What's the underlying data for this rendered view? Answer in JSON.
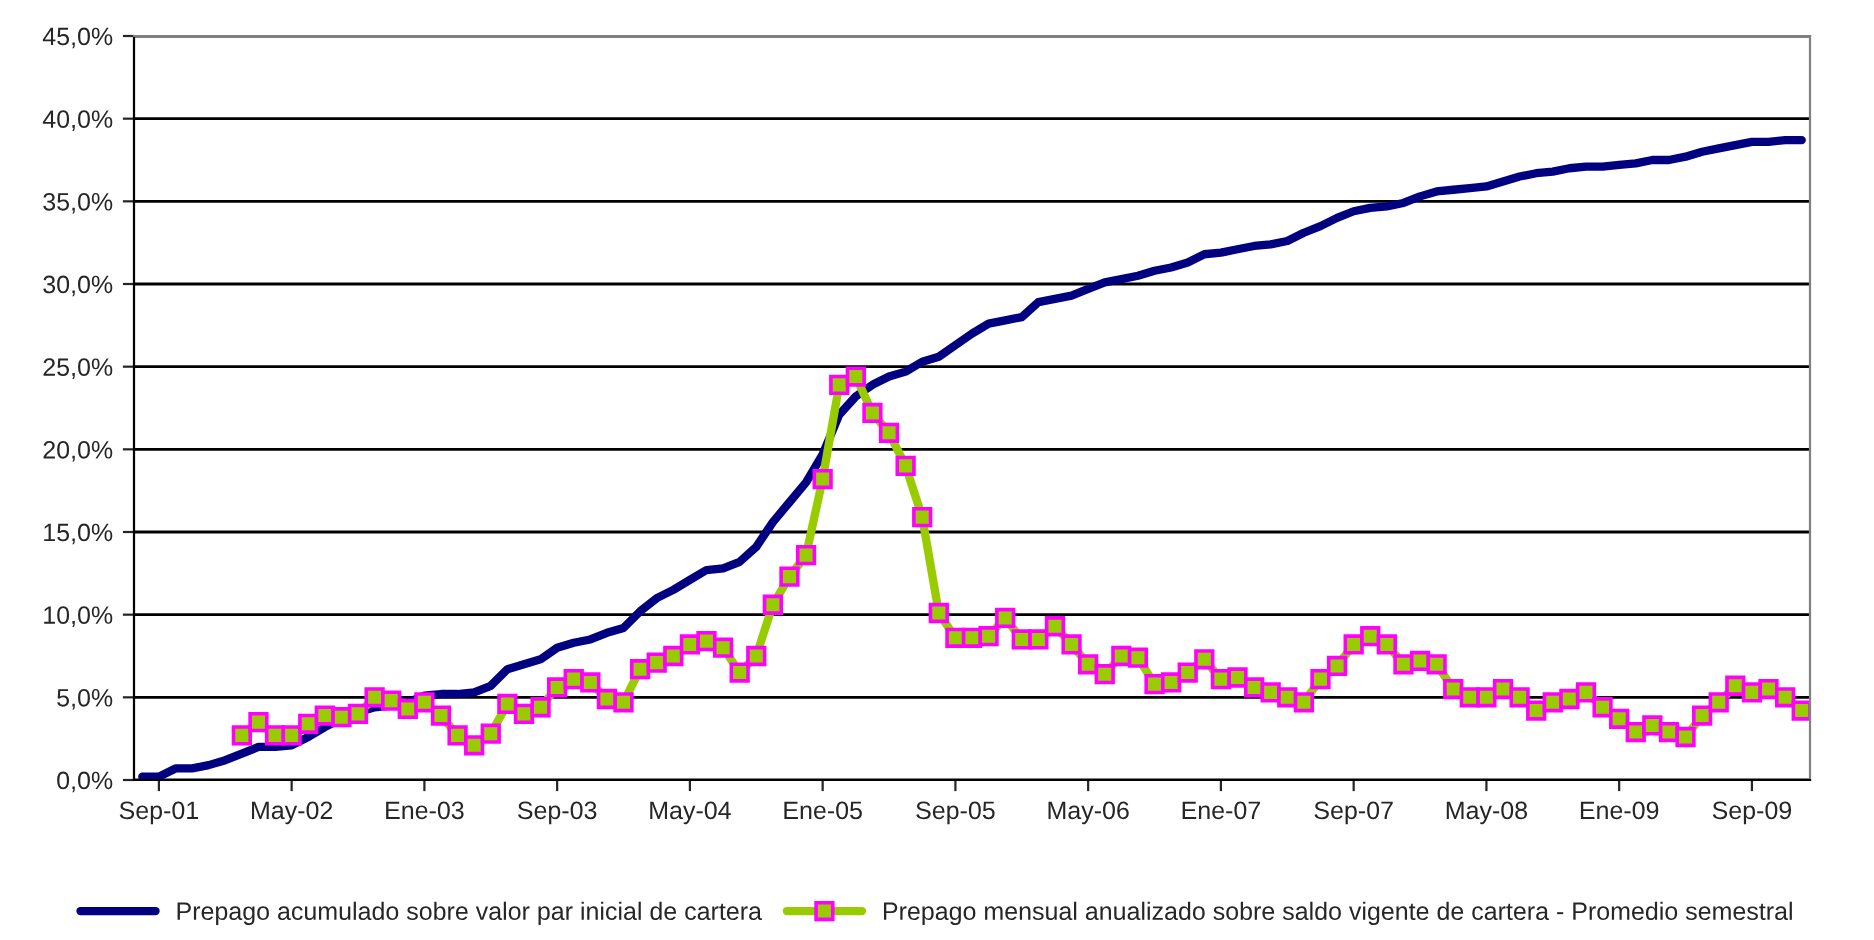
{
  "chart_data": {
    "type": "line",
    "categories": [
      null,
      "Sep-01",
      null,
      null,
      null,
      null,
      null,
      null,
      null,
      "May-02",
      null,
      null,
      null,
      null,
      null,
      null,
      null,
      "Ene-03",
      null,
      null,
      null,
      null,
      null,
      null,
      null,
      "Sep-03",
      null,
      null,
      null,
      null,
      null,
      null,
      null,
      "May-04",
      null,
      null,
      null,
      null,
      null,
      null,
      null,
      "Ene-05",
      null,
      null,
      null,
      null,
      null,
      null,
      null,
      "Sep-05",
      null,
      null,
      null,
      null,
      null,
      null,
      null,
      "May-06",
      null,
      null,
      null,
      null,
      null,
      null,
      null,
      "Ene-07",
      null,
      null,
      null,
      null,
      null,
      null,
      null,
      "Sep-07",
      null,
      null,
      null,
      null,
      null,
      null,
      null,
      "May-08",
      null,
      null,
      null,
      null,
      null,
      null,
      null,
      "Ene-09",
      null,
      null,
      null,
      null,
      null,
      null,
      null,
      "Sep-09",
      null,
      null,
      null
    ],
    "series": [
      {
        "name": "Prepago acumulado sobre valor par inicial de cartera",
        "color": "#000080",
        "marker": "none",
        "values": [
          0.2,
          0.2,
          0.7,
          0.7,
          0.9,
          1.2,
          1.6,
          2.0,
          2.0,
          2.1,
          2.6,
          3.2,
          3.7,
          4.1,
          4.4,
          4.5,
          4.7,
          5.1,
          5.2,
          5.2,
          5.3,
          5.7,
          6.7,
          7.0,
          7.3,
          8.0,
          8.3,
          8.5,
          8.9,
          9.2,
          10.2,
          11.0,
          11.5,
          12.1,
          12.7,
          12.8,
          13.2,
          14.1,
          15.6,
          16.8,
          18.0,
          19.7,
          22.1,
          23.2,
          23.9,
          24.4,
          24.7,
          25.3,
          25.6,
          26.3,
          27.0,
          27.6,
          27.8,
          28.0,
          28.9,
          29.1,
          29.3,
          29.7,
          30.1,
          30.3,
          30.5,
          30.8,
          31.0,
          31.3,
          31.8,
          31.9,
          32.1,
          32.3,
          32.4,
          32.6,
          33.1,
          33.5,
          34.0,
          34.4,
          34.6,
          34.7,
          34.9,
          35.3,
          35.6,
          35.7,
          35.8,
          35.9,
          36.2,
          36.5,
          36.7,
          36.8,
          37.0,
          37.1,
          37.1,
          37.2,
          37.3,
          37.5,
          37.5,
          37.7,
          38.0,
          38.2,
          38.4,
          38.6,
          38.6,
          38.7,
          38.7
        ]
      },
      {
        "name": "Prepago mensual anualizado sobre saldo vigente de cartera - Promedio semestral",
        "color": "#99cc00",
        "marker": "square",
        "values": [
          null,
          null,
          null,
          null,
          null,
          null,
          2.7,
          3.5,
          2.7,
          2.7,
          3.4,
          3.9,
          3.8,
          4.0,
          5.0,
          4.8,
          4.3,
          4.7,
          3.9,
          2.7,
          2.1,
          2.8,
          4.6,
          4.0,
          4.4,
          5.6,
          6.1,
          5.9,
          4.9,
          4.7,
          6.7,
          7.1,
          7.5,
          8.2,
          8.4,
          8.0,
          6.5,
          7.5,
          10.6,
          12.3,
          13.6,
          18.2,
          23.9,
          24.4,
          22.2,
          21.0,
          19.0,
          15.9,
          10.1,
          8.6,
          8.6,
          8.7,
          9.8,
          8.5,
          8.5,
          9.3,
          8.2,
          7.0,
          6.4,
          7.5,
          7.4,
          5.8,
          5.9,
          6.5,
          7.3,
          6.1,
          6.2,
          5.6,
          5.3,
          5.0,
          4.7,
          6.1,
          6.9,
          8.2,
          8.7,
          8.2,
          7.0,
          7.2,
          7.0,
          5.5,
          5.0,
          5.0,
          5.5,
          5.0,
          4.2,
          4.7,
          4.9,
          5.3,
          4.4,
          3.7,
          2.9,
          3.3,
          2.9,
          2.6,
          3.9,
          4.7,
          5.7,
          5.3,
          5.5,
          5.0,
          4.2
        ]
      }
    ],
    "ylim": [
      0,
      45
    ],
    "yticks": [
      {
        "value": 0,
        "label": "0,0%"
      },
      {
        "value": 5,
        "label": "5,0%"
      },
      {
        "value": 10,
        "label": "10,0%"
      },
      {
        "value": 15,
        "label": "15,0%"
      },
      {
        "value": 20,
        "label": "20,0%"
      },
      {
        "value": 25,
        "label": "25,0%"
      },
      {
        "value": 30,
        "label": "30,0%"
      },
      {
        "value": 35,
        "label": "35,0%"
      },
      {
        "value": 40,
        "label": "40,0%"
      },
      {
        "value": 45,
        "label": "45,0%"
      }
    ],
    "grid": "y",
    "legend": "bottom"
  }
}
